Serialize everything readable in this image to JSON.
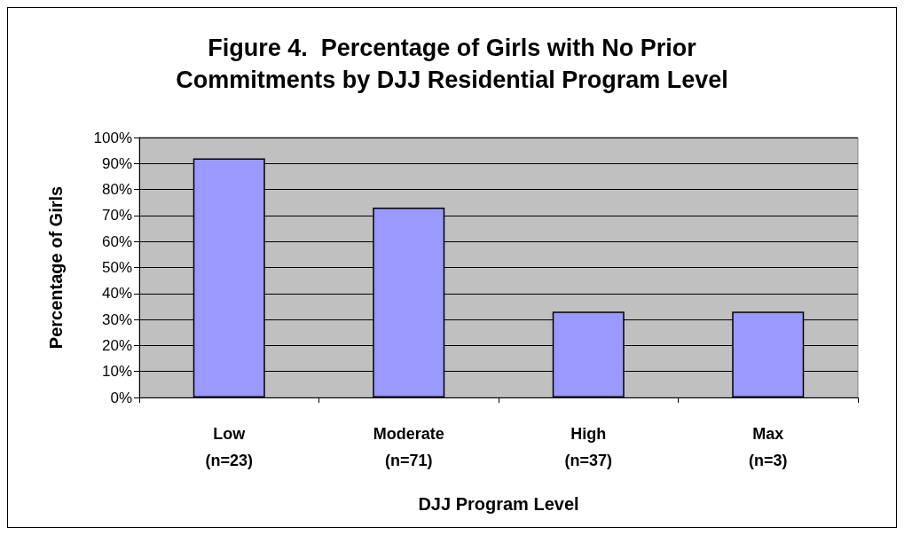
{
  "chart_data": {
    "type": "bar",
    "title": "Figure 4.  Percentage of Girls with No Prior\nCommitments by DJJ Residential Program Level",
    "xlabel": "DJJ Program Level",
    "ylabel": "Percentage of Girls",
    "categories": [
      "Low\n(n=23)",
      "Moderate\n(n=71)",
      "High\n(n=37)",
      "Max\n(n=3)"
    ],
    "values": [
      92,
      73,
      33,
      33
    ],
    "color": "#9999ff",
    "ylim": [
      0,
      100
    ],
    "yticks": [
      {
        "value": 0,
        "label": "0%"
      },
      {
        "value": 10,
        "label": "10%"
      },
      {
        "value": 20,
        "label": "20%"
      },
      {
        "value": 30,
        "label": "30%"
      },
      {
        "value": 40,
        "label": "40%"
      },
      {
        "value": 50,
        "label": "50%"
      },
      {
        "value": 60,
        "label": "60%"
      },
      {
        "value": 70,
        "label": "70%"
      },
      {
        "value": 80,
        "label": "80%"
      },
      {
        "value": 90,
        "label": "90%"
      },
      {
        "value": 100,
        "label": "100%"
      }
    ],
    "grid": "y"
  }
}
